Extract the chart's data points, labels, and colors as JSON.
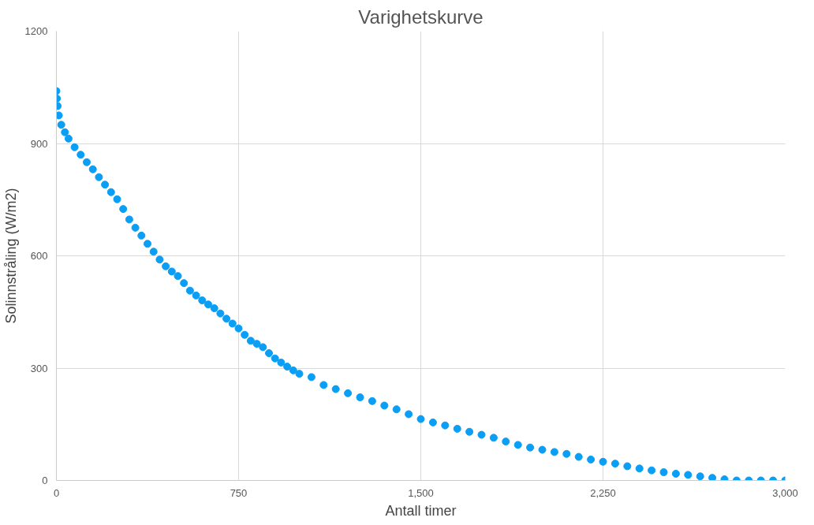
{
  "chart_data": {
    "type": "scatter",
    "title": "Varighetskurve",
    "xlabel": "Antall timer",
    "ylabel": "Solinnstråling (W/m2)",
    "x": [
      0,
      2,
      5,
      10,
      20,
      35,
      50,
      75,
      100,
      125,
      150,
      175,
      200,
      225,
      250,
      275,
      300,
      325,
      350,
      375,
      400,
      425,
      450,
      475,
      500,
      525,
      550,
      575,
      600,
      625,
      650,
      675,
      700,
      725,
      750,
      775,
      800,
      825,
      850,
      875,
      900,
      925,
      950,
      975,
      1000,
      1050,
      1100,
      1150,
      1200,
      1250,
      1300,
      1350,
      1400,
      1450,
      1500,
      1550,
      1600,
      1650,
      1700,
      1750,
      1800,
      1850,
      1900,
      1950,
      2000,
      2050,
      2100,
      2150,
      2200,
      2250,
      2300,
      2350,
      2400,
      2450,
      2500,
      2550,
      2600,
      2650,
      2700,
      2750,
      2800,
      2850,
      2900,
      2950,
      3000
    ],
    "series": [
      {
        "color": "#0a9ef5",
        "values": [
          1040,
          1020,
          1000,
          975,
          950,
          930,
          913,
          890,
          870,
          850,
          831,
          810,
          790,
          770,
          751,
          725,
          697,
          675,
          654,
          632,
          611,
          590,
          572,
          558,
          546,
          527,
          507,
          494,
          481,
          470,
          460,
          446,
          432,
          419,
          406,
          389,
          373,
          365,
          356,
          340,
          326,
          315,
          304,
          294,
          285,
          276,
          255,
          244,
          233,
          222,
          212,
          200,
          190,
          177,
          164,
          155,
          147,
          138,
          130,
          122,
          114,
          104,
          95,
          88,
          82,
          76,
          71,
          63,
          56,
          50,
          45,
          38,
          32,
          27,
          22,
          18,
          15,
          11,
          7,
          3,
          0,
          0,
          0,
          0,
          0
        ]
      }
    ],
    "xlim": [
      0,
      3000
    ],
    "ylim": [
      0,
      1200
    ],
    "xticks": [
      0,
      {
        "value": 750,
        "label": "750"
      },
      {
        "value": 1500,
        "label": "1,500"
      },
      {
        "value": 2250,
        "label": "2,250"
      },
      {
        "value": 3000,
        "label": "3,000"
      }
    ],
    "yticks": [
      0,
      300,
      600,
      900,
      1200
    ],
    "grid": true,
    "marker": "circle"
  }
}
